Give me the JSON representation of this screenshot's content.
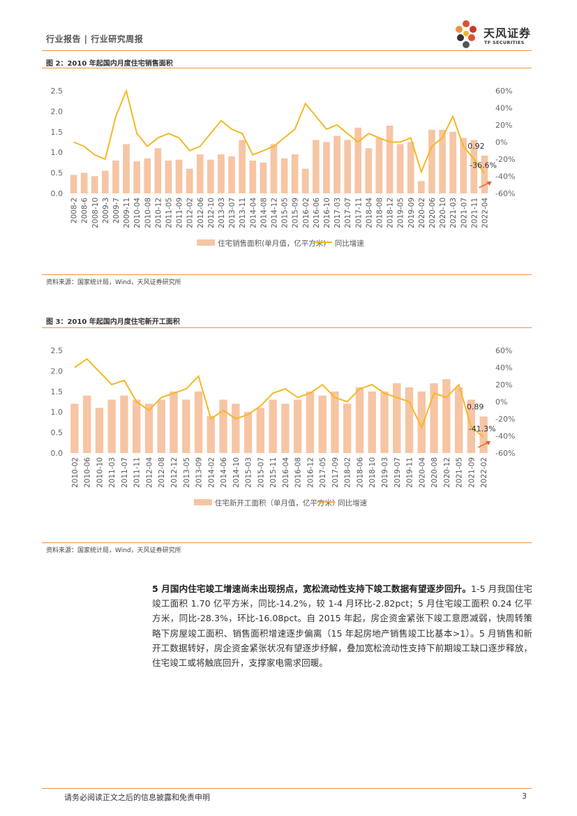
{
  "header": {
    "section": "行业报告 | 行业研究周报"
  },
  "logo": {
    "name_cn": "天风证券",
    "name_en": "TF SECURITIES"
  },
  "colors": {
    "accent": "#e7943f",
    "bar": "#f6c5a4",
    "line": "#f5b823"
  },
  "figures": [
    {
      "title": "图 2：2010 年起国内月度住宅销售面积",
      "source": "资料来源：国家统计局，Wind，天风证券研究所",
      "chart_data": {
        "type": "bar+line",
        "title": "图 2：2010 年起国内月度住宅销售面积",
        "categories": [
          "2008-2",
          "2008-6",
          "2008-10",
          "2009-3",
          "2009-7",
          "2009-11",
          "2010-04",
          "2010-08",
          "2010-12",
          "2011-05",
          "2011-09",
          "2012-02",
          "2012-06",
          "2012-10",
          "2013-03",
          "2013-07",
          "2013-11",
          "2014-04",
          "2014-08",
          "2014-12",
          "2015-05",
          "2015-09",
          "2016-02",
          "2016-06",
          "2016-10",
          "2017-03",
          "2017-07",
          "2017-11",
          "2018-04",
          "2018-08",
          "2018-12",
          "2019-05",
          "2019-09",
          "2020-02",
          "2020-06",
          "2020-10",
          "2021-03",
          "2021-07",
          "2021-11",
          "2022-04"
        ],
        "series": [
          {
            "name": "住宅销售面积(单月值，亿平方米)",
            "type": "bar",
            "axis": "left",
            "values": [
              0.45,
              0.5,
              0.42,
              0.55,
              0.8,
              1.2,
              0.78,
              0.85,
              1.1,
              0.8,
              0.82,
              0.6,
              0.95,
              0.82,
              0.95,
              0.9,
              1.3,
              0.8,
              0.75,
              1.2,
              0.85,
              0.95,
              0.6,
              1.3,
              1.25,
              1.4,
              1.3,
              1.6,
              1.1,
              1.35,
              1.65,
              1.2,
              1.25,
              0.3,
              1.55,
              1.55,
              1.5,
              1.35,
              1.3,
              0.92
            ]
          },
          {
            "name": "同比增速",
            "type": "line",
            "axis": "right",
            "values": [
              0,
              -5,
              -15,
              -20,
              30,
              60,
              10,
              -5,
              5,
              10,
              5,
              -10,
              -5,
              10,
              25,
              15,
              10,
              -15,
              -10,
              -5,
              5,
              15,
              45,
              30,
              15,
              20,
              10,
              0,
              10,
              5,
              0,
              0,
              5,
              -35,
              -5,
              5,
              30,
              -5,
              -20,
              -36.6
            ]
          }
        ],
        "ylim_left": [
          0,
          2.5
        ],
        "yticks_left": [
          "0.0",
          "0.5",
          "1.0",
          "1.5",
          "2.0",
          "2.5"
        ],
        "ylim_right": [
          -60,
          60
        ],
        "yticks_right": [
          "-60%",
          "-40%",
          "-20%",
          "0%",
          "20%",
          "40%",
          "60%"
        ],
        "annotations": [
          {
            "text": "0.92",
            "series": "住宅销售面积(单月值，亿平方米)",
            "at": "2022-04"
          },
          {
            "text": "-36.6%",
            "series": "同比增速",
            "at": "2022-04"
          }
        ],
        "legend": [
          "住宅销售面积(单月值，亿平方米)",
          "同比增速"
        ],
        "legend_position": "bottom"
      }
    },
    {
      "title": "图 3：2010 年起国内月度住宅新开工面积",
      "source": "资料来源：国家统计局，Wind，天风证券研究所",
      "chart_data": {
        "type": "bar+line",
        "title": "图 3：2010 年起国内月度住宅新开工面积",
        "categories": [
          "2010-02",
          "2010-06",
          "2010-10",
          "2011-03",
          "2011-07",
          "2011-11",
          "2012-04",
          "2012-08",
          "2012-12",
          "2013-05",
          "2013-09",
          "2014-02",
          "2014-06",
          "2014-10",
          "2015-03",
          "2015-07",
          "2015-11",
          "2016-04",
          "2016-08",
          "2016-12",
          "2017-05",
          "2017-09",
          "2018-02",
          "2018-06",
          "2018-10",
          "2019-03",
          "2019-07",
          "2019-11",
          "2020-04",
          "2020-08",
          "2020-12",
          "2021-05",
          "2021-09",
          "2022-02"
        ],
        "series": [
          {
            "name": "住宅新开工面积（单月值，亿平方米）",
            "type": "bar",
            "axis": "left",
            "values": [
              1.2,
              1.4,
              1.1,
              1.3,
              1.4,
              1.3,
              1.2,
              1.3,
              1.5,
              1.3,
              1.5,
              0.9,
              1.3,
              1.2,
              1.0,
              1.1,
              1.3,
              1.2,
              1.3,
              1.5,
              1.4,
              1.5,
              1.2,
              1.6,
              1.5,
              1.5,
              1.7,
              1.6,
              1.5,
              1.7,
              1.8,
              1.6,
              1.3,
              0.89
            ]
          },
          {
            "name": "同比增速",
            "type": "line",
            "axis": "right",
            "values": [
              40,
              50,
              35,
              20,
              25,
              0,
              -10,
              5,
              10,
              15,
              30,
              -20,
              -10,
              -20,
              -15,
              -5,
              10,
              15,
              5,
              10,
              20,
              5,
              0,
              15,
              20,
              10,
              5,
              0,
              -30,
              10,
              5,
              20,
              -30,
              -41.3
            ]
          }
        ],
        "ylim_left": [
          0,
          2.5
        ],
        "yticks_left": [
          "0.0",
          "0.5",
          "1.0",
          "1.5",
          "2.0",
          "2.5"
        ],
        "ylim_right": [
          -60,
          60
        ],
        "yticks_right": [
          "-60%",
          "-40%",
          "-20%",
          "0%",
          "20%",
          "40%",
          "60%"
        ],
        "annotations": [
          {
            "text": "0.89",
            "series": "住宅新开工面积（单月值，亿平方米）",
            "at": "2022-02"
          },
          {
            "text": "-41.3%",
            "series": "同比增速",
            "at": "2022-02"
          }
        ],
        "legend": [
          "住宅新开工面积（单月值，亿平方米）",
          "同比增速"
        ],
        "legend_position": "bottom"
      }
    }
  ],
  "body": {
    "lead": "5 月国内住宅竣工增速尚未出现拐点，宽松流动性支持下竣工数据有望逐步回升。",
    "text": "1-5 月我国住宅竣工面积 1.70 亿平方米，同比-14.2%，较 1-4 月环比-2.82pct；5 月住宅竣工面积 0.24 亿平方米，同比-28.3%，环比-16.08pct。自 2015 年起，房企资金紧张下竣工意愿减弱，快周转策略下房屋竣工面积、销售面积增速逐步偏离（15 年起房地产销售竣工比基本>1）。5 月销售和新开工数据转好，房企资金紧张状况有望逐步纾解，叠加宽松流动性支持下前期竣工缺口逐步释放，住宅竣工或将触底回升，支撑家电需求回暖。"
  },
  "footer": {
    "disclaimer": "请务必阅读正文之后的信息披露和免责申明",
    "page": "3"
  }
}
